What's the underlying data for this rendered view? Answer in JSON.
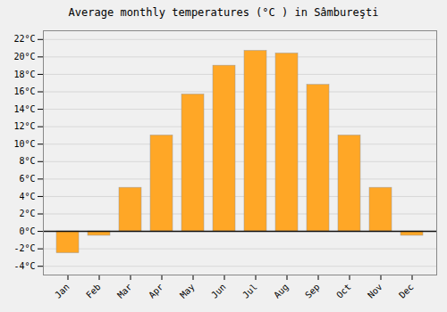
{
  "chart_data": {
    "type": "bar",
    "title": "Average monthly temperatures (°C ) in Sâmbureşti",
    "categories": [
      "Jan",
      "Feb",
      "Mar",
      "Apr",
      "May",
      "Jun",
      "Jul",
      "Aug",
      "Sep",
      "Oct",
      "Nov",
      "Dec"
    ],
    "values": [
      -2.5,
      -0.5,
      5.0,
      11.0,
      15.7,
      19.0,
      20.7,
      20.4,
      16.8,
      11.0,
      5.0,
      -0.5
    ],
    "color": "#FFA726",
    "ylim": [
      -5,
      23
    ],
    "yticks": [
      {
        "value": -4,
        "label": "-4°C"
      },
      {
        "value": -2,
        "label": "-2°C"
      },
      {
        "value": 0,
        "label": "0°C"
      },
      {
        "value": 2,
        "label": "2°C"
      },
      {
        "value": 4,
        "label": "4°C"
      },
      {
        "value": 6,
        "label": "6°C"
      },
      {
        "value": 8,
        "label": "8°C"
      },
      {
        "value": 10,
        "label": "10°C"
      },
      {
        "value": 12,
        "label": "12°C"
      },
      {
        "value": 14,
        "label": "14°C"
      },
      {
        "value": 16,
        "label": "16°C"
      },
      {
        "value": 18,
        "label": "18°C"
      },
      {
        "value": 20,
        "label": "20°C"
      },
      {
        "value": 22,
        "label": "22°C"
      }
    ],
    "grid": true
  }
}
